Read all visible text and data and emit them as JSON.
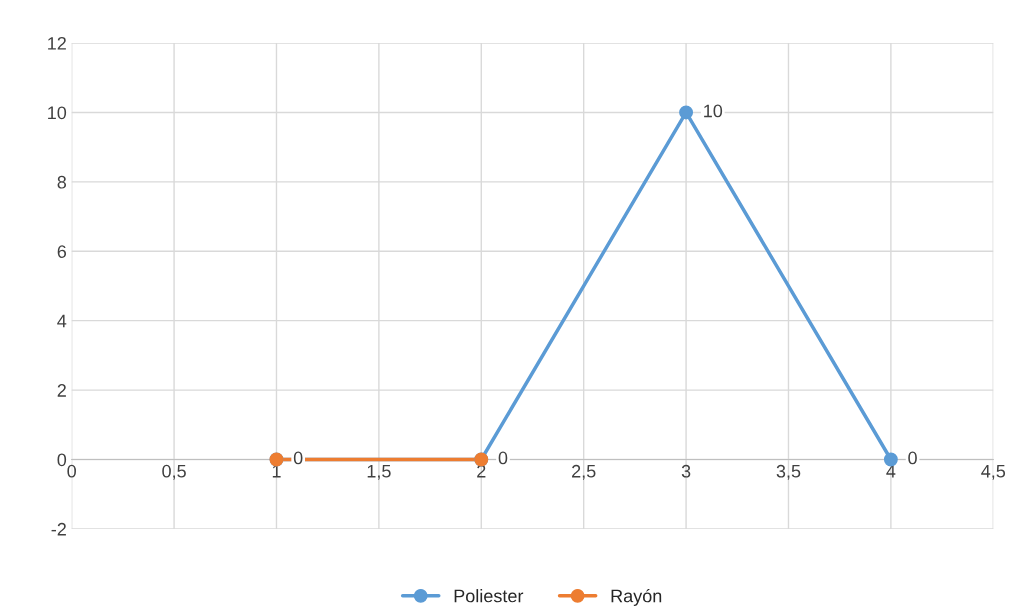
{
  "chart_data": {
    "type": "line",
    "series": [
      {
        "name": "Poliester",
        "color": "#5b9bd5",
        "x": [
          1,
          2,
          3,
          4
        ],
        "values": [
          0,
          0,
          10,
          0
        ],
        "value_labels": [
          "0",
          "0",
          "10",
          "0"
        ]
      },
      {
        "name": "Rayón",
        "color": "#ed7d31",
        "x": [
          1,
          2
        ],
        "values": [
          0,
          0
        ]
      }
    ],
    "xlim": [
      0,
      4.5
    ],
    "xticks": [
      0,
      {
        "value": 0.5,
        "label": "0,5"
      },
      1,
      {
        "value": 1.5,
        "label": "1,5"
      },
      2,
      {
        "value": 2.5,
        "label": "2,5"
      },
      3,
      {
        "value": 3.5,
        "label": "3,5"
      },
      4,
      {
        "value": 4.5,
        "label": "4,5"
      }
    ],
    "ylim": [
      -2,
      12
    ],
    "yticks": [
      -2,
      0,
      2,
      4,
      6,
      8,
      10,
      12
    ],
    "grid": true,
    "legend": "bottom",
    "marker": "circle",
    "line_style": "solid"
  }
}
